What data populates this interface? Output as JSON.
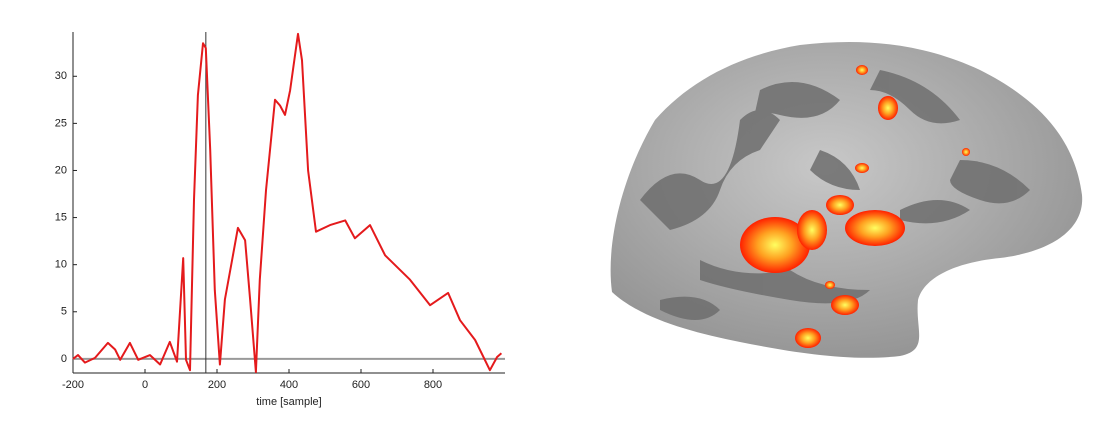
{
  "chart_data": {
    "type": "line",
    "xlabel": "time [sample]",
    "x": [
      -200,
      -186,
      -167,
      -139,
      -103,
      -83,
      -69,
      -42,
      -19,
      14,
      42,
      69,
      89,
      106,
      114,
      125,
      136,
      147,
      161,
      169,
      181,
      194,
      208,
      222,
      242,
      258,
      278,
      292,
      308,
      319,
      336,
      361,
      375,
      389,
      403,
      425,
      436,
      453,
      475,
      514,
      556,
      583,
      625,
      667,
      736,
      792,
      842,
      875,
      917,
      958,
      978,
      990
    ],
    "values": [
      0,
      0.4,
      -0.4,
      0.1,
      1.7,
      1,
      -0.1,
      1.7,
      -0.1,
      0.4,
      -0.6,
      1.8,
      -0.3,
      10.7,
      -0.1,
      -1.2,
      16.9,
      28,
      33.5,
      33,
      22.2,
      7.3,
      -0.6,
      6.3,
      10.5,
      13.9,
      12.6,
      6.3,
      -1.4,
      8.4,
      17.9,
      27.5,
      26.9,
      25.9,
      28.5,
      34.5,
      31.7,
      20,
      13.5,
      14.2,
      14.7,
      12.8,
      14.2,
      11,
      8.4,
      5.7,
      7,
      4.1,
      2,
      -1.2,
      0.2,
      0.6
    ],
    "color": "#e41a1c",
    "cursor_x": 169,
    "xlim": [
      -200,
      1000
    ],
    "ylim": [
      -1.5,
      34.7
    ],
    "xticks": [
      -200,
      0,
      200,
      400,
      600,
      800
    ],
    "yticks": [
      0,
      5,
      10,
      15,
      20,
      25,
      30
    ]
  }
}
